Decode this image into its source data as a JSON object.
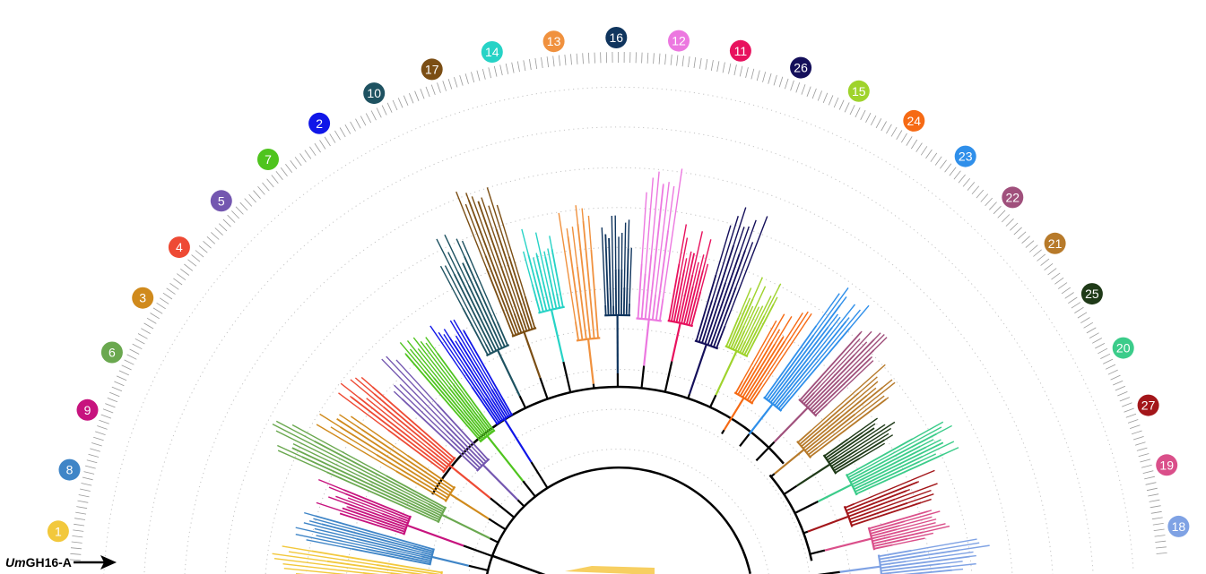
{
  "marker": {
    "prefix": "Um",
    "suffix": "GH16-A"
  },
  "clades": [
    {
      "id": "1",
      "color": "#f2c83c"
    },
    {
      "id": "8",
      "color": "#3f85c7"
    },
    {
      "id": "9",
      "color": "#c7137e"
    },
    {
      "id": "6",
      "color": "#6aa84f"
    },
    {
      "id": "3",
      "color": "#d08a1c"
    },
    {
      "id": "4",
      "color": "#ee4a34"
    },
    {
      "id": "5",
      "color": "#7457b0"
    },
    {
      "id": "7",
      "color": "#4fc41e"
    },
    {
      "id": "2",
      "color": "#1016e8"
    },
    {
      "id": "10",
      "color": "#1e5261"
    },
    {
      "id": "17",
      "color": "#7b4e14"
    },
    {
      "id": "14",
      "color": "#26d3c6"
    },
    {
      "id": "13",
      "color": "#f0913e"
    },
    {
      "id": "16",
      "color": "#10355e"
    },
    {
      "id": "12",
      "color": "#ec78e0"
    },
    {
      "id": "11",
      "color": "#e8125e"
    },
    {
      "id": "26",
      "color": "#140f5a"
    },
    {
      "id": "15",
      "color": "#9fd32c"
    },
    {
      "id": "24",
      "color": "#f66a14"
    },
    {
      "id": "23",
      "color": "#2f8fea"
    },
    {
      "id": "22",
      "color": "#a0507c"
    },
    {
      "id": "21",
      "color": "#b77a2a"
    },
    {
      "id": "25",
      "color": "#1f3a18"
    },
    {
      "id": "20",
      "color": "#3bcc8a"
    },
    {
      "id": "27",
      "color": "#a3161a"
    },
    {
      "id": "19",
      "color": "#da4f8a"
    },
    {
      "id": "18",
      "color": "#7fa2e4"
    }
  ]
}
